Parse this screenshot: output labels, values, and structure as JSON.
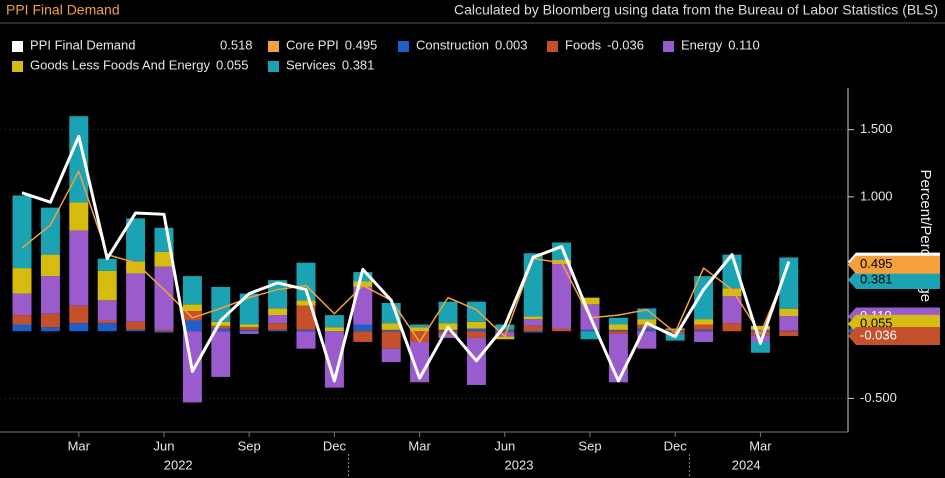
{
  "chart_data": {
    "type": "bar",
    "stacked": true,
    "title": "PPI Final Demand",
    "subtitle": "Calculated by Bloomberg using data from the Bureau of Labor Statistics (BLS)",
    "y_label": "Percent/Percentage Point",
    "categories": [
      null,
      null,
      "Mar",
      null,
      null,
      "Jun",
      null,
      null,
      "Sep",
      null,
      null,
      "Dec",
      null,
      null,
      "Mar",
      null,
      null,
      "Jun",
      null,
      null,
      "Sep",
      null,
      null,
      "Dec",
      null,
      null,
      "Mar",
      null
    ],
    "x_groups": [
      "2022",
      "2023",
      "2024"
    ],
    "ylim": [
      -0.75,
      1.81
    ],
    "yticks": [
      {
        "value": -0.5,
        "label": "-0.500"
      },
      {
        "value": 1.0,
        "label": "1.000"
      },
      {
        "value": 1.5,
        "label": "1.500"
      }
    ],
    "grid": true,
    "series": [
      {
        "name": "PPI Final Demand",
        "type": "line",
        "color": "#ffffff",
        "values": [
          1.03,
          0.96,
          1.45,
          0.54,
          0.88,
          0.87,
          -0.3,
          0.08,
          0.28,
          0.36,
          0.31,
          -0.37,
          0.46,
          0.23,
          -0.35,
          0.03,
          -0.22,
          0.04,
          0.55,
          0.63,
          0.11,
          -0.37,
          0.06,
          -0.04,
          0.31,
          0.57,
          -0.09,
          0.518
        ]
      },
      {
        "name": "Core PPI",
        "type": "line",
        "color": "#f5a03a",
        "values": [
          0.62,
          0.79,
          1.19,
          0.57,
          0.51,
          0.31,
          0.1,
          0.17,
          0.25,
          0.31,
          0.34,
          0.13,
          0.34,
          0.23,
          -0.08,
          0.25,
          0.16,
          -0.04,
          0.54,
          0.51,
          0.1,
          0.12,
          0.16,
          -0.01,
          0.47,
          0.31,
          -0.02,
          0.495
        ]
      },
      {
        "name": "Construction",
        "type": "bar",
        "color": "#1f5fc8",
        "values": [
          0.05,
          0.03,
          0.06,
          0.06,
          0.01,
          -0.01,
          0.08,
          0.02,
          0.01,
          0.01,
          0.01,
          0.0,
          0.05,
          0.01,
          0.0,
          0.01,
          0.02,
          0.01,
          -0.01,
          0.0,
          0.01,
          0.01,
          0.02,
          0.01,
          0.01,
          0.0,
          0.01,
          0.003
        ]
      },
      {
        "name": "Foods",
        "type": "bar",
        "color": "#c4502c",
        "values": [
          0.07,
          0.1,
          0.13,
          0.02,
          0.06,
          0.01,
          0.07,
          0.02,
          0.02,
          0.05,
          0.18,
          0.0,
          -0.08,
          -0.13,
          -0.08,
          -0.02,
          -0.05,
          -0.01,
          0.04,
          0.02,
          0.0,
          -0.02,
          0.03,
          -0.02,
          0.04,
          0.06,
          -0.03,
          -0.036
        ]
      },
      {
        "name": "Energy",
        "type": "bar",
        "color": "#9a5ccc",
        "values": [
          0.16,
          0.28,
          0.56,
          0.15,
          0.36,
          0.47,
          -0.53,
          -0.34,
          -0.02,
          0.06,
          -0.13,
          -0.42,
          0.28,
          -0.1,
          -0.3,
          -0.03,
          -0.35,
          -0.03,
          0.05,
          0.48,
          0.19,
          -0.36,
          -0.13,
          0.0,
          -0.08,
          0.2,
          -0.05,
          0.11
        ],
        "value_labels": [
          null,
          null,
          null,
          null,
          null,
          null,
          null,
          null,
          null,
          null,
          null,
          null,
          null,
          null,
          null,
          null,
          null,
          null,
          null,
          null,
          null,
          null,
          null,
          null,
          null,
          null,
          null,
          "0.110"
        ]
      },
      {
        "name": "Goods Less Foods And Energy",
        "type": "bar",
        "color": "#d6bc10",
        "values": [
          0.19,
          0.16,
          0.21,
          0.22,
          0.09,
          0.11,
          0.05,
          0.03,
          0.02,
          0.05,
          0.04,
          0.03,
          0.04,
          0.05,
          0.03,
          0.05,
          0.05,
          -0.02,
          0.02,
          0.03,
          0.05,
          0.04,
          0.04,
          0.01,
          0.04,
          0.06,
          0.03,
          0.055
        ]
      },
      {
        "name": "Services",
        "type": "bar",
        "color": "#1ba3b4",
        "values": [
          0.54,
          0.35,
          0.64,
          0.09,
          0.32,
          0.18,
          0.21,
          0.26,
          0.23,
          0.21,
          0.28,
          0.09,
          0.07,
          0.15,
          0.02,
          0.16,
          0.15,
          0.04,
          0.47,
          0.13,
          -0.06,
          0.05,
          0.08,
          -0.05,
          0.32,
          0.25,
          -0.08,
          0.381
        ]
      }
    ]
  }
}
